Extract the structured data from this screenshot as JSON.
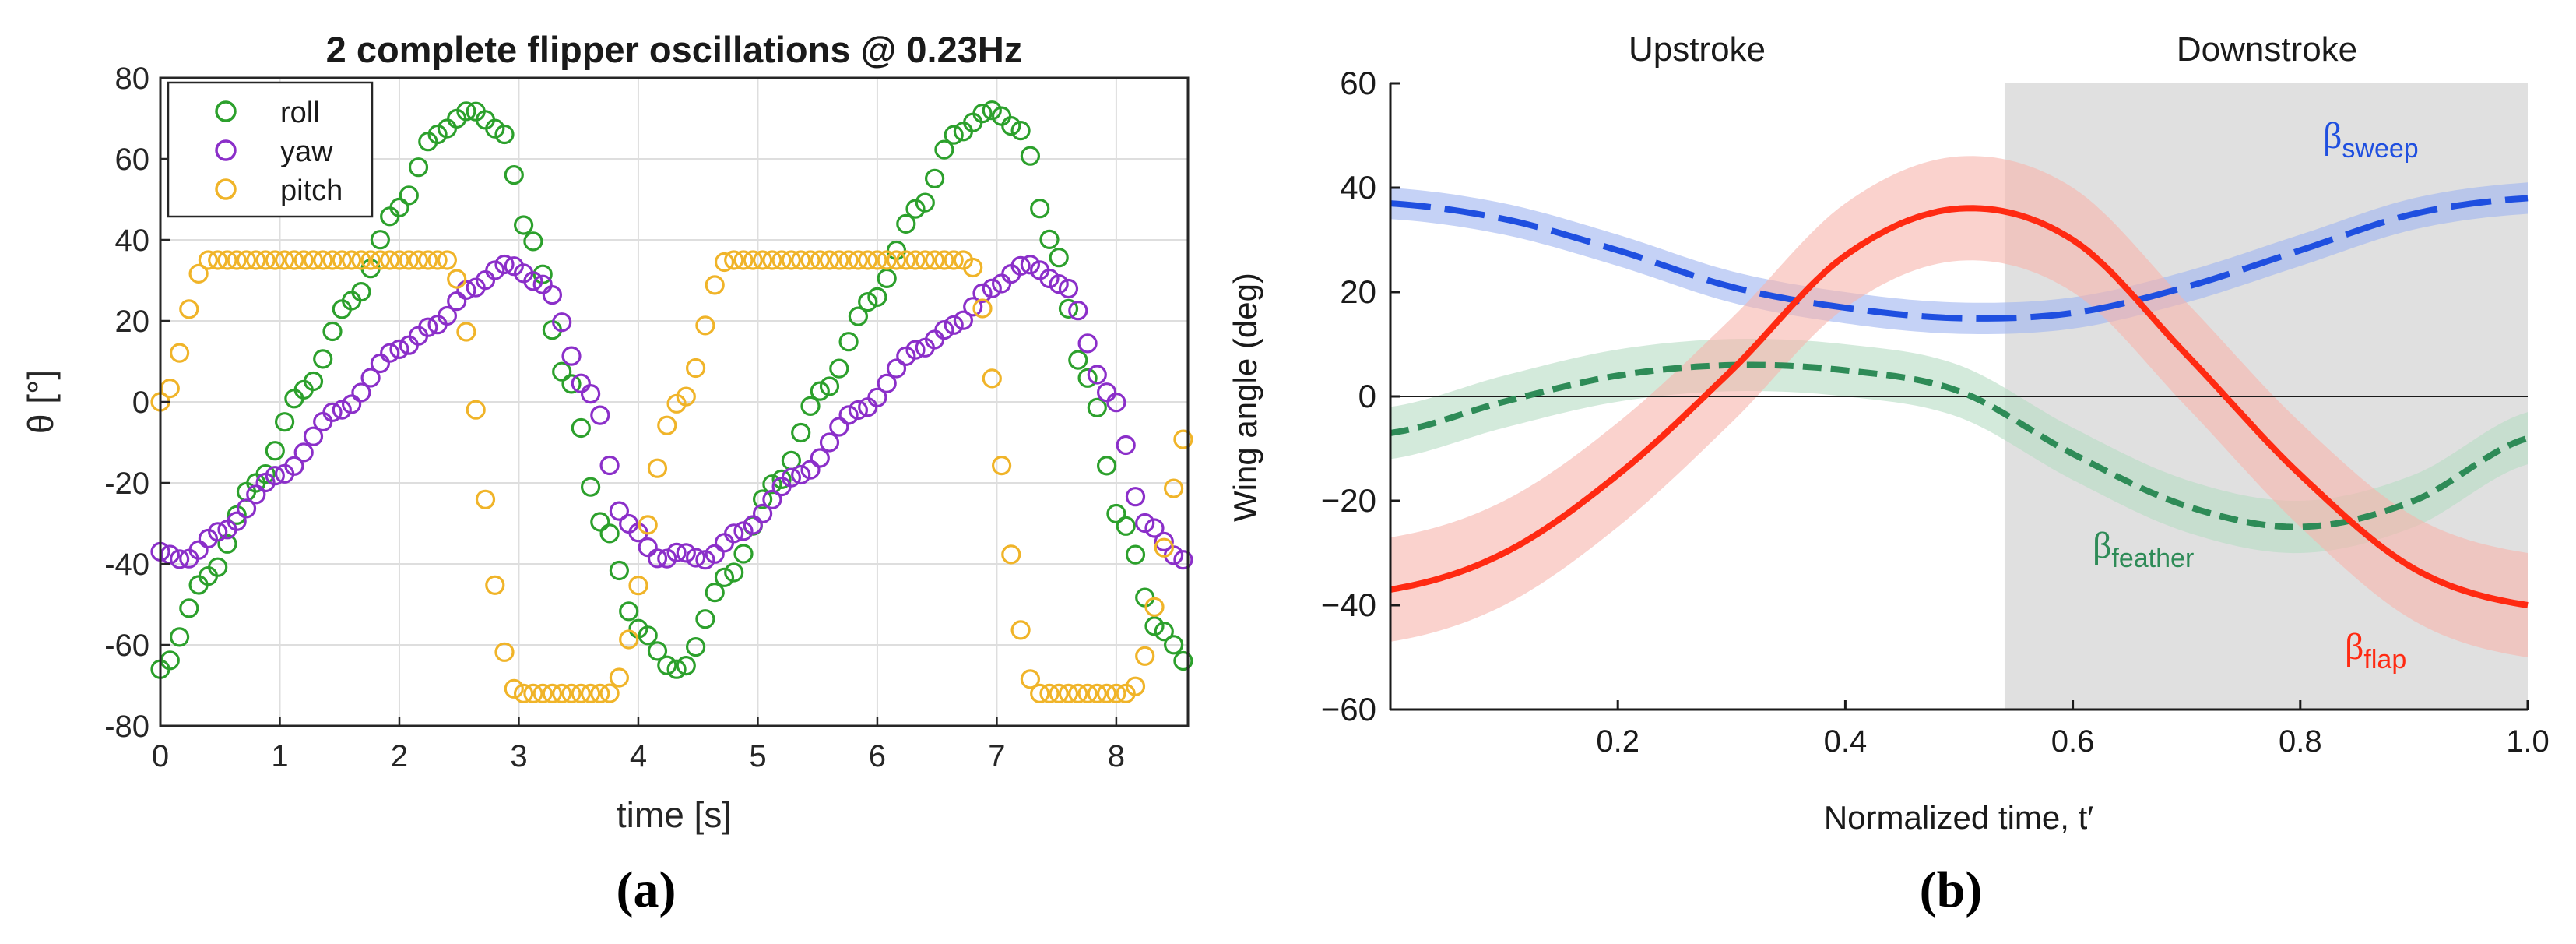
{
  "chart_data": [
    {
      "panel": "a",
      "type": "scatter",
      "panel_label": "(a)",
      "title": "2 complete flipper oscillations @ 0.23Hz",
      "xlabel": "time [s]",
      "ylabel": "θ [°]",
      "xlim": [
        0,
        8.6
      ],
      "ylim": [
        -80,
        80
      ],
      "xticks": [
        0,
        1,
        2,
        3,
        4,
        5,
        6,
        7,
        8
      ],
      "yticks": [
        80,
        60,
        40,
        20,
        0,
        -20,
        -40,
        -60,
        -80
      ],
      "grid": true,
      "legend_position": "top-left",
      "marker": "open-circle",
      "sample_interval_s": 0.08,
      "series": [
        {
          "name": "roll",
          "color": "#2ca02c",
          "period_s": 4.35,
          "values_over_one_period": [
            {
              "t": 0.0,
              "y": -66
            },
            {
              "t": 0.4,
              "y": -43
            },
            {
              "t": 0.8,
              "y": -20
            },
            {
              "t": 1.2,
              "y": 3
            },
            {
              "t": 1.6,
              "y": 25
            },
            {
              "t": 2.0,
              "y": 48
            },
            {
              "t": 2.3,
              "y": 66
            },
            {
              "t": 2.6,
              "y": 72
            },
            {
              "t": 2.85,
              "y": 67
            },
            {
              "t": 3.1,
              "y": 40
            },
            {
              "t": 3.4,
              "y": 6
            },
            {
              "t": 3.7,
              "y": -30
            },
            {
              "t": 4.0,
              "y": -56
            },
            {
              "t": 4.3,
              "y": -66
            }
          ]
        },
        {
          "name": "yaw",
          "color": "#8b2fc9",
          "period_s": 4.35,
          "values_over_one_period": [
            {
              "t": 0.0,
              "y": -37
            },
            {
              "t": 0.2,
              "y": -39
            },
            {
              "t": 0.5,
              "y": -32
            },
            {
              "t": 1.0,
              "y": -18
            },
            {
              "t": 1.5,
              "y": -2
            },
            {
              "t": 2.0,
              "y": 13
            },
            {
              "t": 2.3,
              "y": 19
            },
            {
              "t": 2.6,
              "y": 28
            },
            {
              "t": 2.9,
              "y": 34
            },
            {
              "t": 3.2,
              "y": 29
            },
            {
              "t": 3.6,
              "y": 2
            },
            {
              "t": 3.9,
              "y": -30
            },
            {
              "t": 4.2,
              "y": -39
            },
            {
              "t": 4.35,
              "y": -37
            }
          ]
        },
        {
          "name": "pitch",
          "color": "#f0b429",
          "period_s": 4.35,
          "values_over_one_period": [
            {
              "t": 0.0,
              "y": 0
            },
            {
              "t": 0.4,
              "y": 35
            },
            {
              "t": 2.4,
              "y": 35
            },
            {
              "t": 3.0,
              "y": -72
            },
            {
              "t": 3.75,
              "y": -72
            },
            {
              "t": 4.35,
              "y": 0
            }
          ]
        }
      ]
    },
    {
      "panel": "b",
      "type": "line",
      "panel_label": "(b)",
      "xlabel": "Normalized time, t′",
      "ylabel": "Wing angle (deg)",
      "xlim": [
        0,
        1.0
      ],
      "ylim": [
        -60,
        60
      ],
      "xticks": [
        0.2,
        0.4,
        0.6,
        0.8,
        1.0
      ],
      "xtick_labels": [
        "0.2",
        "0.4",
        "0.6",
        "0.8",
        "1.0"
      ],
      "yticks": [
        60,
        40,
        20,
        0,
        -20,
        -40,
        -60
      ],
      "ytick_labels": [
        "60",
        "40",
        "20",
        "0",
        "−20",
        "−40",
        "−60"
      ],
      "grid": false,
      "zero_line": true,
      "phase_labels": {
        "upstroke": "Upstroke",
        "downstroke": "Downstroke"
      },
      "downstroke_start": 0.54,
      "shade_color": "#e0e0e0",
      "series": [
        {
          "name": "sweep",
          "label_symbol": "β",
          "label_sub": "sweep",
          "color": "#1f4fe0",
          "band_color": "#9fb4f0",
          "style": "long-dash",
          "x": [
            0,
            0.1,
            0.2,
            0.3,
            0.4,
            0.5,
            0.6,
            0.7,
            0.8,
            0.9,
            1.0
          ],
          "y": [
            37,
            34,
            28,
            21,
            17,
            15,
            16,
            21,
            28,
            35,
            38
          ],
          "band_halfwidth": 3
        },
        {
          "name": "feather",
          "label_symbol": "β",
          "label_sub": "feather",
          "color": "#2e8b57",
          "band_color": "#b6dcc3",
          "style": "short-dash",
          "x": [
            0,
            0.1,
            0.2,
            0.3,
            0.4,
            0.5,
            0.6,
            0.7,
            0.8,
            0.9,
            1.0
          ],
          "y": [
            -7,
            -1,
            4,
            6,
            5,
            1,
            -11,
            -21,
            -25,
            -20,
            -8
          ],
          "band_halfwidth": 5
        },
        {
          "name": "flap",
          "label_symbol": "β",
          "label_sub": "flap",
          "color": "#ff2a12",
          "band_color": "#f6b4ac",
          "style": "solid",
          "x": [
            0,
            0.1,
            0.2,
            0.3,
            0.4,
            0.5,
            0.6,
            0.7,
            0.8,
            0.9,
            1.0
          ],
          "y": [
            -37,
            -30,
            -15,
            5,
            27,
            36,
            30,
            8,
            -15,
            -33,
            -40
          ],
          "band_halfwidth": 10
        }
      ]
    }
  ]
}
